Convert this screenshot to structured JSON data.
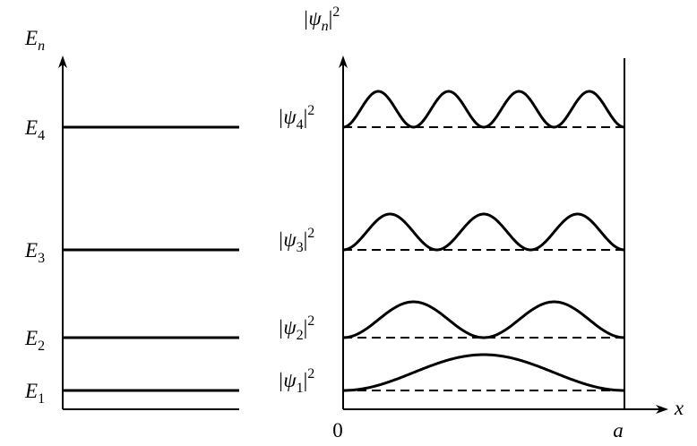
{
  "energy_axis": {
    "symbol": "E",
    "subscript": "n"
  },
  "levels": [
    {
      "symbol": "E",
      "subscript": "4"
    },
    {
      "symbol": "E",
      "subscript": "3"
    },
    {
      "symbol": "E",
      "subscript": "2"
    },
    {
      "symbol": "E",
      "subscript": "1"
    }
  ],
  "density_axis": {
    "open": "|ψ",
    "subscript": "n",
    "close": "|",
    "superscript": "2"
  },
  "densities": [
    {
      "open": "|ψ",
      "subscript": "4",
      "close": "|",
      "superscript": "2"
    },
    {
      "open": "|ψ",
      "subscript": "3",
      "close": "|",
      "superscript": "2"
    },
    {
      "open": "|ψ",
      "subscript": "2",
      "close": "|",
      "superscript": "2"
    },
    {
      "open": "|ψ",
      "subscript": "1",
      "close": "|",
      "superscript": "2"
    }
  ],
  "x_axis": {
    "origin": "0",
    "end": "a",
    "label": "x"
  }
}
